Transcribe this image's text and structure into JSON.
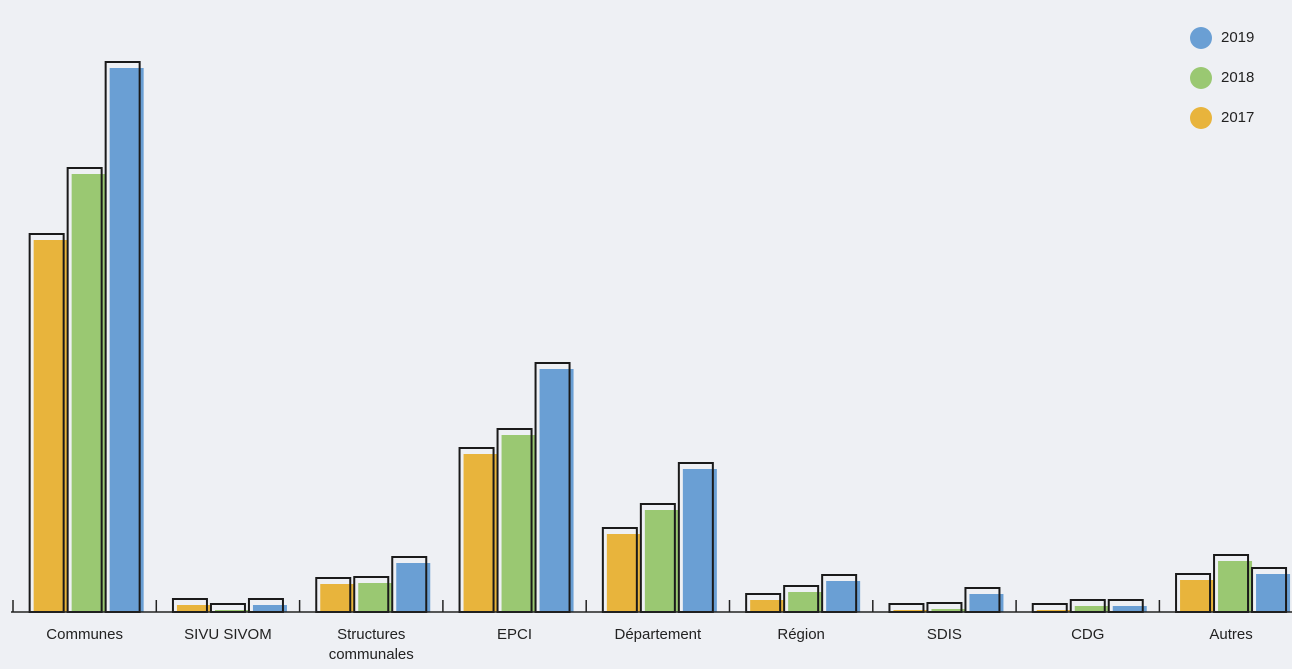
{
  "chart_data": {
    "type": "bar",
    "categories": [
      "Communes",
      "SIVU SIVOM",
      "Structures communales",
      "EPCI",
      "Département",
      "Région",
      "SDIS",
      "CDG",
      "Autres"
    ],
    "series": [
      {
        "name": "2017",
        "color": "#e8b43c",
        "values": [
          372,
          7,
          28,
          158,
          78,
          12,
          2,
          2,
          32
        ]
      },
      {
        "name": "2018",
        "color": "#9ac872",
        "values": [
          438,
          2,
          29,
          177,
          102,
          20,
          3,
          6,
          51
        ]
      },
      {
        "name": "2019",
        "color": "#6a9fd4",
        "values": [
          544,
          7,
          49,
          243,
          143,
          31,
          18,
          6,
          38
        ]
      }
    ],
    "ylim": [
      0,
      560
    ],
    "legend": "top-right"
  }
}
